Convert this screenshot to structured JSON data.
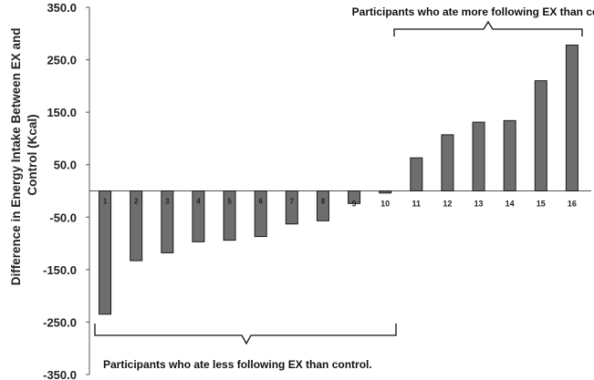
{
  "chart_data": {
    "type": "bar",
    "ylabel_line1": "Difference in Energy Intake Between EX and",
    "ylabel_line2": "Control (Kcal)",
    "ylim": [
      -350,
      350
    ],
    "y_ticks": [
      "350.0",
      "250.0",
      "150.0",
      "50.0",
      "-50.0",
      "-150.0",
      "-250.0",
      "-350.0"
    ],
    "y_tick_values": [
      350,
      250,
      150,
      50,
      -50,
      -150,
      -250,
      -350
    ],
    "grid": false,
    "categories": [
      "1",
      "2",
      "3",
      "4",
      "5",
      "6",
      "7",
      "8",
      "9",
      "10",
      "11",
      "12",
      "13",
      "14",
      "15",
      "16"
    ],
    "values": [
      -235,
      -133,
      -118,
      -97,
      -94,
      -87,
      -63,
      -57,
      -24,
      -4,
      63,
      107,
      131,
      134,
      210,
      278
    ],
    "annotations": {
      "more": "Participants who ate more following EX than control.",
      "less": "Participants who ate less following EX than control."
    }
  }
}
